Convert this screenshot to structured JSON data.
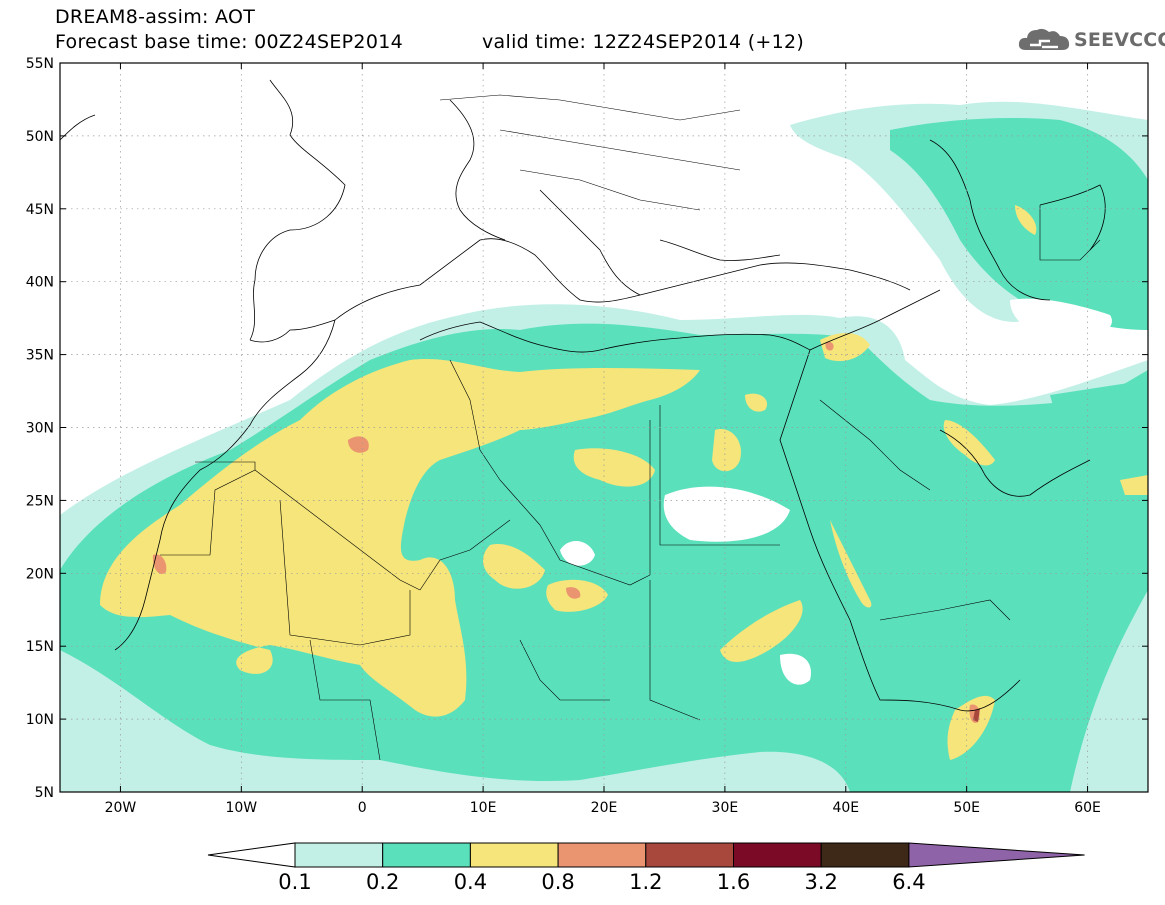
{
  "header": {
    "title_line1": "DREAM8-assim: AOT",
    "title_line2": "Forecast base time: 00Z24SEP2014",
    "valid_time": "valid time: 12Z24SEP2014 (+12)"
  },
  "logo": {
    "text": "SEEVCCC",
    "icon": "cloud-icon"
  },
  "map": {
    "lat_labels": [
      "55N",
      "50N",
      "45N",
      "40N",
      "35N",
      "30N",
      "25N",
      "20N",
      "15N",
      "10N",
      "5N"
    ],
    "lon_labels": [
      "20W",
      "10W",
      "0",
      "10E",
      "20E",
      "30E",
      "40E",
      "50E",
      "60E"
    ],
    "extent": {
      "lon_min": -25,
      "lon_max": 65,
      "lat_min": 5,
      "lat_max": 55
    }
  },
  "legend": {
    "levels": [
      "0.1",
      "0.2",
      "0.4",
      "0.8",
      "1.2",
      "1.6",
      "3.2",
      "6.4"
    ],
    "colors": [
      "#ffffff",
      "#c2f0e6",
      "#5be0bc",
      "#f5e57a",
      "#ea9570",
      "#a8473c",
      "#7a0a25",
      "#3e2818",
      "#8f63a8"
    ]
  }
}
